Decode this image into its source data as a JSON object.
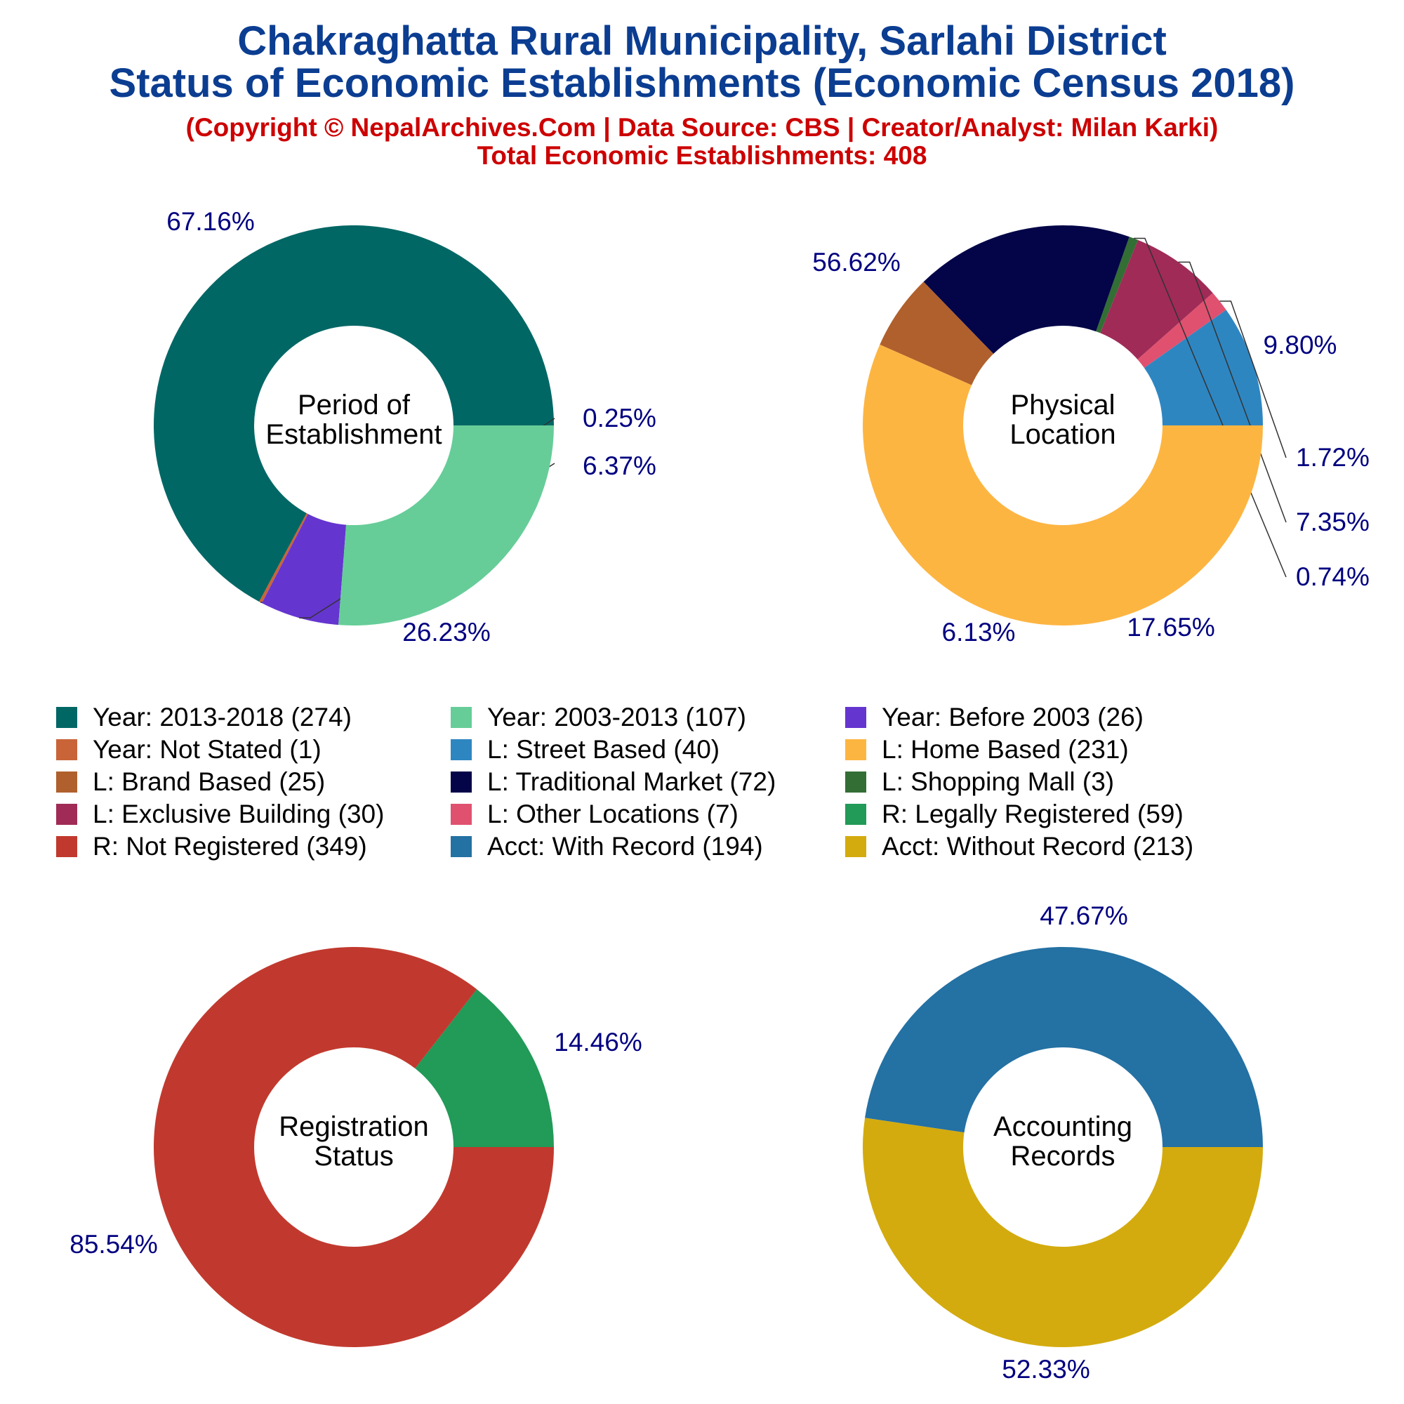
{
  "header": {
    "title_line1": "Chakraghatta Rural Municipality, Sarlahi District",
    "title_line2": "Status of Economic Establishments (Economic Census 2018)",
    "subtitle_line1": "(Copyright © NepalArchives.Com | Data Source: CBS | Creator/Analyst: Milan Karki)",
    "subtitle_line2": "Total Economic Establishments: 408"
  },
  "chart_data": [
    {
      "type": "pie",
      "center_label": [
        "Period of",
        "Establishment"
      ],
      "slices": [
        {
          "label": "Year: 2013-2018",
          "value": 274,
          "pct": "67.16%",
          "color": "#016765"
        },
        {
          "label": "Year: Not Stated",
          "value": 1,
          "pct": "0.25%",
          "color": "#c96438"
        },
        {
          "label": "Year: Before 2003",
          "value": 26,
          "pct": "6.37%",
          "color": "#6535cf"
        },
        {
          "label": "Year: 2003-2013",
          "value": 107,
          "pct": "26.23%",
          "color": "#66cd98"
        }
      ]
    },
    {
      "type": "pie",
      "center_label": [
        "Physical",
        "Location"
      ],
      "slices": [
        {
          "label": "L: Street Based",
          "value": 40,
          "pct": "9.80%",
          "color": "#2e86c1"
        },
        {
          "label": "L: Other Locations",
          "value": 7,
          "pct": "1.72%",
          "color": "#e05170"
        },
        {
          "label": "L: Exclusive Building",
          "value": 30,
          "pct": "7.35%",
          "color": "#a02b57"
        },
        {
          "label": "L: Shopping Mall",
          "value": 3,
          "pct": "0.74%",
          "color": "#336e35"
        },
        {
          "label": "L: Traditional Market",
          "value": 72,
          "pct": "17.65%",
          "color": "#030548"
        },
        {
          "label": "L: Brand Based",
          "value": 25,
          "pct": "6.13%",
          "color": "#b0602c"
        },
        {
          "label": "L: Home Based",
          "value": 231,
          "pct": "56.62%",
          "color": "#fdb542"
        }
      ]
    },
    {
      "type": "pie",
      "center_label": [
        "Registration",
        "Status"
      ],
      "slices": [
        {
          "label": "R: Legally Registered",
          "value": 59,
          "pct": "14.46%",
          "color": "#229a58"
        },
        {
          "label": "R: Not Registered",
          "value": 349,
          "pct": "85.54%",
          "color": "#c1392e"
        }
      ]
    },
    {
      "type": "pie",
      "center_label": [
        "Accounting",
        "Records"
      ],
      "slices": [
        {
          "label": "Acct: With Record",
          "value": 194,
          "pct": "47.67%",
          "color": "#2471a3"
        },
        {
          "label": "Acct: Without Record",
          "value": 213,
          "pct": "52.33%",
          "color": "#d3ab0e"
        }
      ]
    }
  ],
  "legend": [
    {
      "text": "Year: 2013-2018 (274)",
      "color": "#016765"
    },
    {
      "text": "Year: 2003-2013 (107)",
      "color": "#66cd98"
    },
    {
      "text": "Year: Before 2003 (26)",
      "color": "#6535cf"
    },
    {
      "text": "Year: Not Stated (1)",
      "color": "#c96438"
    },
    {
      "text": "L: Street Based (40)",
      "color": "#2e86c1"
    },
    {
      "text": "L: Home Based (231)",
      "color": "#fdb542"
    },
    {
      "text": "L: Brand Based (25)",
      "color": "#b0602c"
    },
    {
      "text": "L: Traditional Market (72)",
      "color": "#030548"
    },
    {
      "text": "L: Shopping Mall (3)",
      "color": "#336e35"
    },
    {
      "text": "L: Exclusive Building (30)",
      "color": "#a02b57"
    },
    {
      "text": "L: Other Locations (7)",
      "color": "#e05170"
    },
    {
      "text": "R: Legally Registered (59)",
      "color": "#229a58"
    },
    {
      "text": "R: Not Registered (349)",
      "color": "#c1392e"
    },
    {
      "text": "Acct: With Record (194)",
      "color": "#2471a3"
    },
    {
      "text": "Acct: Without Record (213)",
      "color": "#d3ab0e"
    }
  ]
}
